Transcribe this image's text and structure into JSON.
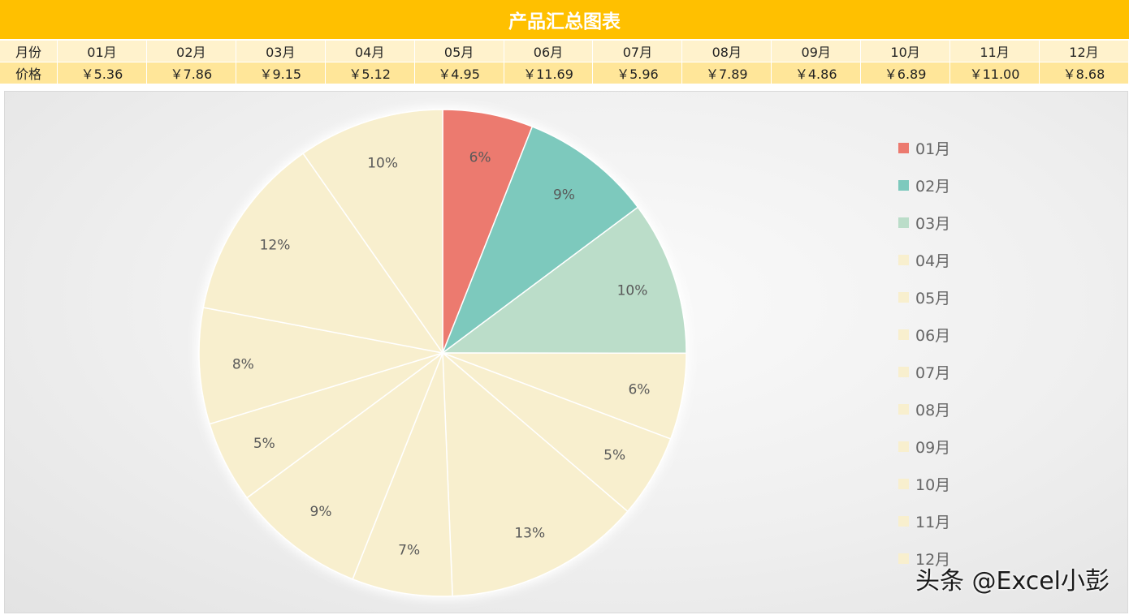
{
  "title": "产品汇总图表",
  "table": {
    "month_header": "月份",
    "price_header": "价格",
    "months": [
      "01月",
      "02月",
      "03月",
      "04月",
      "05月",
      "06月",
      "07月",
      "08月",
      "09月",
      "10月",
      "11月",
      "12月"
    ],
    "prices": [
      "￥5.36",
      "￥7.86",
      "￥9.15",
      "￥5.12",
      "￥4.95",
      "￥11.69",
      "￥5.96",
      "￥7.89",
      "￥4.86",
      "￥6.89",
      "￥11.00",
      "￥8.68"
    ]
  },
  "chart_data": {
    "type": "pie",
    "categories": [
      "01月",
      "02月",
      "03月",
      "04月",
      "05月",
      "06月",
      "07月",
      "08月",
      "09月",
      "10月",
      "11月",
      "12月"
    ],
    "values": [
      5.36,
      7.86,
      9.15,
      5.12,
      4.95,
      11.69,
      5.96,
      7.89,
      4.86,
      6.89,
      11.0,
      8.68
    ],
    "labels": [
      "6%",
      "9%",
      "10%",
      "6%",
      "5%",
      "13%",
      "7%",
      "9%",
      "5%",
      "8%",
      "12%",
      "10%"
    ],
    "colors": [
      "#EC7A6F",
      "#7DC9BD",
      "#BBDDC9",
      "#F8EFCE",
      "#F8EFCE",
      "#F8EFCE",
      "#F8EFCE",
      "#F8EFCE",
      "#F8EFCE",
      "#F8EFCE",
      "#F8EFCE",
      "#F8EFCE"
    ],
    "legend_position": "right",
    "start_angle": "12 o'clock, clockwise"
  },
  "watermark": "头条 @Excel小彭"
}
